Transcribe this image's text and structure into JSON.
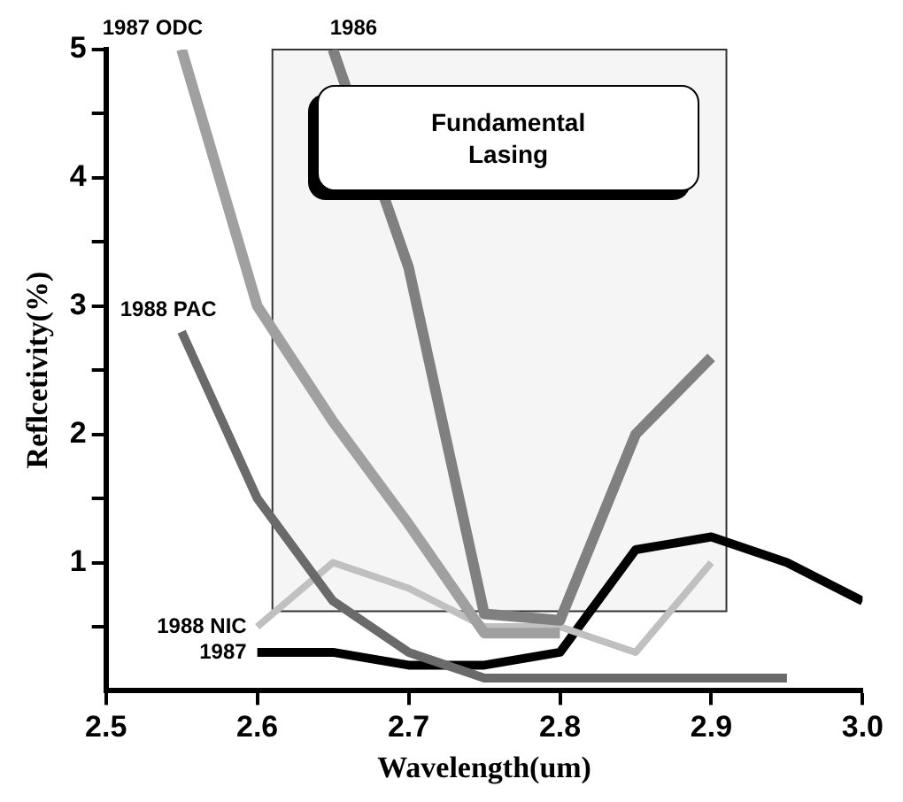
{
  "chart_data": {
    "type": "line",
    "xlabel": "Wavelength(um)",
    "ylabel": "Reflcetivity(%)",
    "xlim": [
      2.5,
      3.0
    ],
    "xticks": [
      2.5,
      2.6,
      2.7,
      2.8,
      2.9,
      {
        "value": 3,
        "label": "3.0"
      }
    ],
    "ylim": [
      0,
      5
    ],
    "yticks": [
      {
        "value": 0.5,
        "label": null
      },
      1,
      {
        "value": 1.5,
        "label": null
      },
      2,
      {
        "value": 2.5,
        "label": null
      },
      3,
      {
        "value": 3.5,
        "label": null
      },
      4,
      {
        "value": 4.5,
        "label": null
      },
      5
    ],
    "grid": false,
    "legend": false,
    "marker": "none",
    "bands": [
      {
        "axis": "x",
        "from": 2.61,
        "to": 2.91,
        "label": "Fundamental Lasing"
      }
    ],
    "series": [
      {
        "name": "1987 ODC",
        "color": "#a0a0a0",
        "x": [
          2.55,
          2.6,
          2.65,
          2.7,
          2.75,
          2.8
        ],
        "values": [
          5,
          3.0,
          2.1,
          1.3,
          0.45,
          0.45
        ]
      },
      {
        "name": "1986",
        "color": "#808080",
        "x": [
          2.65,
          2.7,
          2.75,
          2.8,
          2.85,
          2.9
        ],
        "values": [
          5,
          3.3,
          0.6,
          0.55,
          2.0,
          2.6
        ]
      },
      {
        "name": "1988 PAC",
        "color": "#6a6a6a",
        "x": [
          2.55,
          2.6,
          2.65,
          2.7,
          2.75,
          2.8,
          2.85,
          2.9,
          2.95
        ],
        "values": [
          2.8,
          1.5,
          0.7,
          0.3,
          0.1,
          0.1,
          0.1,
          0.1,
          0.1
        ]
      },
      {
        "name": "1988 NIC",
        "color": "#c0c0c0",
        "x": [
          2.6,
          2.65,
          2.7,
          2.75,
          2.8,
          2.85,
          2.9
        ],
        "values": [
          0.5,
          1.0,
          0.8,
          0.5,
          0.5,
          0.3,
          1.0
        ]
      },
      {
        "name": "1987",
        "color": "#000000",
        "x": [
          2.6,
          2.65,
          2.7,
          2.75,
          2.8,
          2.85,
          2.9,
          2.95,
          3.0
        ],
        "values": [
          0.3,
          0.3,
          0.2,
          0.2,
          0.3,
          1.1,
          1.2,
          1.0,
          0.7
        ]
      }
    ]
  }
}
